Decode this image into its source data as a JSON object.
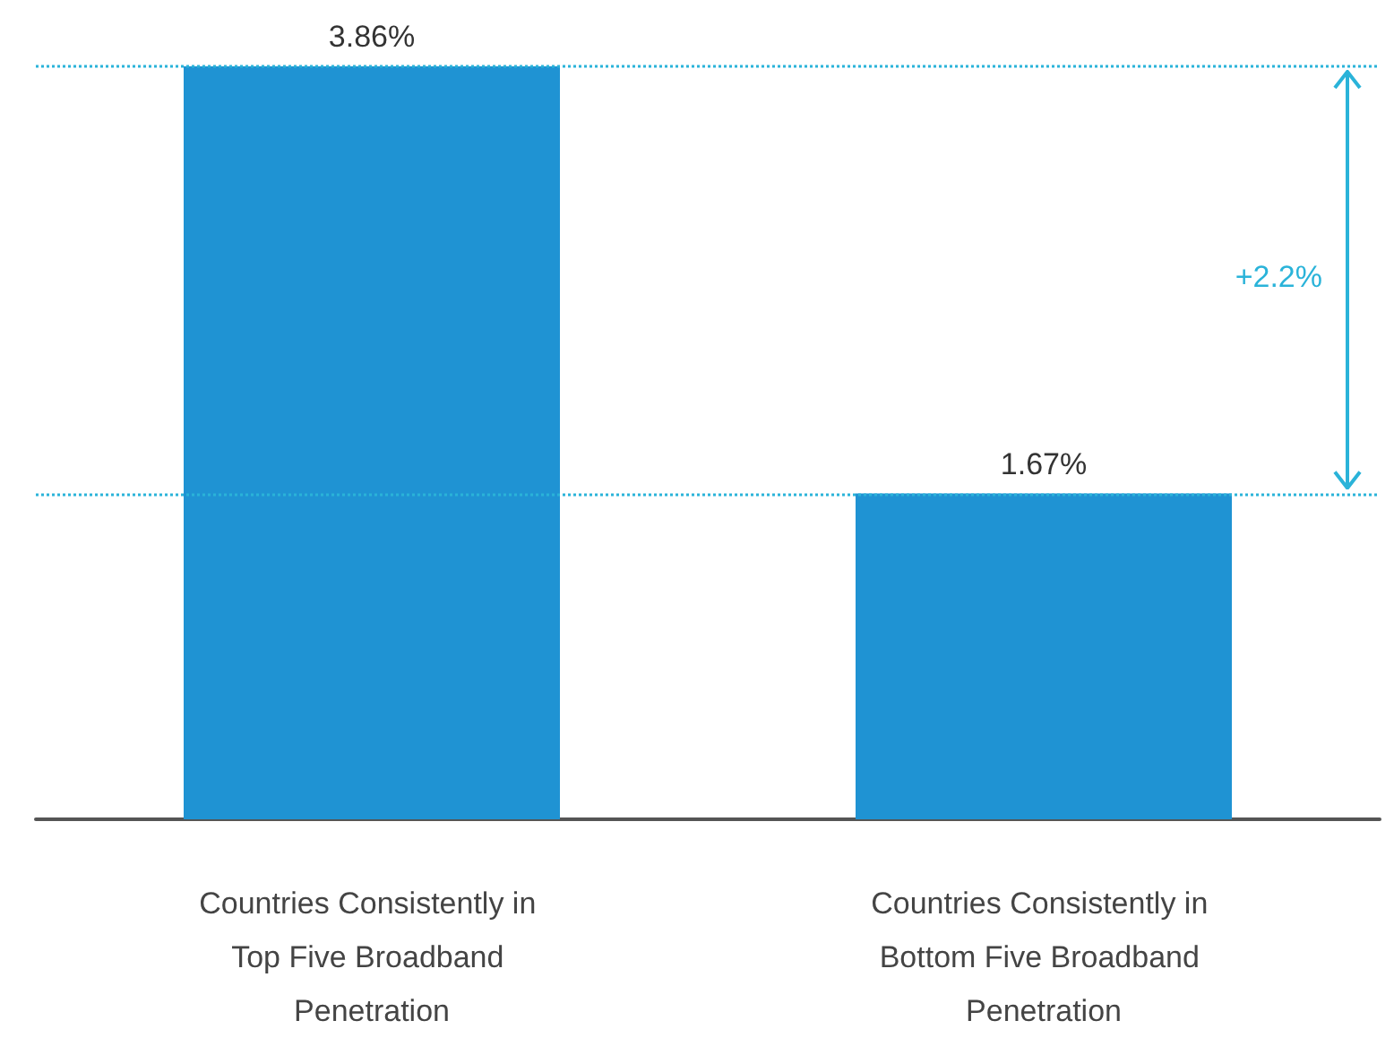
{
  "chart_data": {
    "type": "bar",
    "categories": [
      "Countries Consistently in Top Five Broadband Penetration",
      "Countries Consistently in Bottom Five Broadband Penetration"
    ],
    "values": [
      3.86,
      1.67
    ],
    "color": "#1f93d3",
    "value_labels": [
      "3.86%",
      "1.67%"
    ],
    "ylim": [
      0,
      4.2
    ],
    "tick_labels": "x",
    "grid": false,
    "ref_lines": [
      {
        "axis": "y",
        "value": 3.86,
        "color": "#2ab3d9",
        "line_style": "dotted"
      },
      {
        "axis": "y",
        "value": 1.67,
        "color": "#2ab3d9",
        "line_style": "dotted"
      }
    ],
    "annotations": [
      "+2.2%"
    ]
  }
}
